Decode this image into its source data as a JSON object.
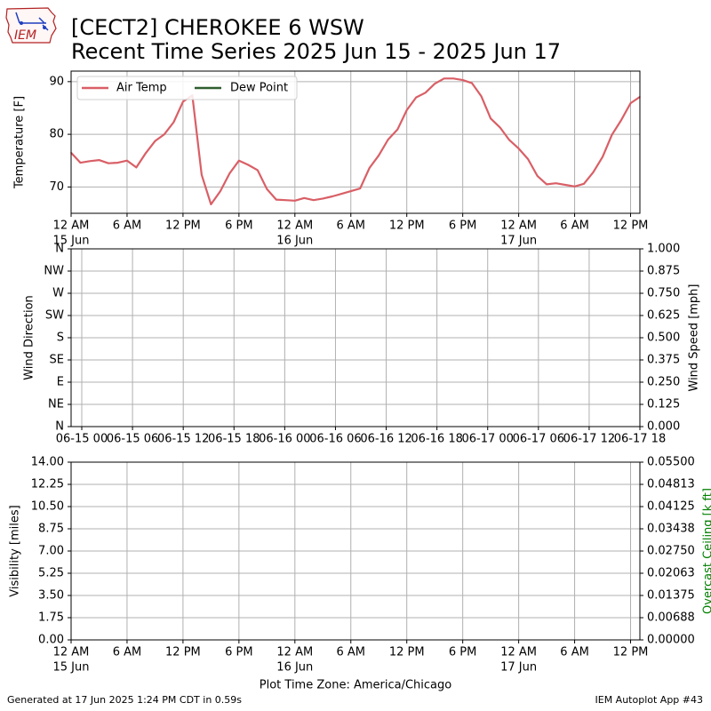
{
  "page": {
    "title_line1": "[CECT2] CHEROKEE 6 WSW",
    "title_line2": "Recent Time Series 2025 Jun 15 - 2025 Jun 17",
    "logo_text": "IEM",
    "footer_left": "Generated at 17 Jun 2025 1:24 PM CDT in 0.59s",
    "footer_right": "IEM Autoplot App #43"
  },
  "colors": {
    "air_temp": "#d95f66",
    "dew_point": "#2e5e2e",
    "ceiling_label": "#008000",
    "grid": "#b0b0b0"
  },
  "chart_data": [
    {
      "type": "line",
      "ylabel": "Temperature [F]",
      "ylim": [
        65,
        92
      ],
      "yticks": [
        70,
        80,
        90
      ],
      "grid": true,
      "legend_placement": "top-left",
      "xlim_hours": [
        0,
        61
      ],
      "xticks": [
        {
          "h": 0,
          "label": "12 AM",
          "sub": "15 Jun"
        },
        {
          "h": 6,
          "label": "6 AM",
          "sub": ""
        },
        {
          "h": 12,
          "label": "12 PM",
          "sub": ""
        },
        {
          "h": 18,
          "label": "6 PM",
          "sub": ""
        },
        {
          "h": 24,
          "label": "12 AM",
          "sub": "16 Jun"
        },
        {
          "h": 30,
          "label": "6 AM",
          "sub": ""
        },
        {
          "h": 36,
          "label": "12 PM",
          "sub": ""
        },
        {
          "h": 42,
          "label": "6 PM",
          "sub": ""
        },
        {
          "h": 48,
          "label": "12 AM",
          "sub": "17 Jun"
        },
        {
          "h": 54,
          "label": "6 AM",
          "sub": ""
        },
        {
          "h": 60,
          "label": "12 PM",
          "sub": ""
        }
      ],
      "series": [
        {
          "name": "Air Temp",
          "x": [
            0,
            1,
            2,
            3,
            4,
            5,
            6,
            7,
            8,
            9,
            10,
            11,
            12,
            13,
            14,
            15,
            16,
            17,
            18,
            19,
            20,
            21,
            22,
            23,
            24,
            25,
            26,
            27,
            28,
            29,
            30,
            31,
            32,
            33,
            34,
            35,
            36,
            37,
            38,
            39,
            40,
            41,
            42,
            43,
            44,
            45,
            46,
            47,
            48,
            49,
            50,
            51,
            52,
            53,
            54,
            55,
            56,
            57,
            58,
            59,
            60,
            61
          ],
          "values": [
            76.5,
            74.6,
            74.9,
            75.1,
            74.5,
            74.6,
            75.0,
            73.7,
            76.4,
            78.7,
            80.0,
            82.3,
            86.2,
            87.4,
            72.3,
            66.7,
            69.2,
            72.6,
            75.0,
            74.2,
            73.2,
            69.6,
            67.6,
            67.5,
            67.4,
            67.9,
            67.5,
            67.8,
            68.2,
            68.7,
            69.2,
            69.7,
            73.6,
            76.0,
            79.0,
            80.9,
            84.6,
            87.0,
            87.9,
            89.6,
            90.6,
            90.6,
            90.3,
            89.7,
            87.2,
            83.0,
            81.3,
            78.9,
            77.3,
            75.3,
            72.1,
            70.5,
            70.7,
            70.4,
            70.1,
            70.6,
            72.8,
            75.7,
            79.9,
            82.7,
            85.9,
            87.1
          ]
        },
        {
          "name": "Dew Point",
          "x": [],
          "values": []
        }
      ]
    },
    {
      "type": "line",
      "ylabel": "Wind Direction",
      "y2label": "Wind Speed [mph]",
      "yticklabels": [
        "N",
        "NE",
        "E",
        "SE",
        "S",
        "SW",
        "W",
        "NW",
        "N"
      ],
      "y2ticklabels": [
        "0.000",
        "0.125",
        "0.250",
        "0.375",
        "0.500",
        "0.625",
        "0.750",
        "0.875",
        "1.000"
      ],
      "y2lim": [
        0,
        1
      ],
      "grid": true,
      "xticks": [
        {
          "h": 0,
          "label": "06-15 00"
        },
        {
          "h": 6,
          "label": "06-15 06"
        },
        {
          "h": 12,
          "label": "06-15 12"
        },
        {
          "h": 18,
          "label": "06-15 18"
        },
        {
          "h": 24,
          "label": "06-16 00"
        },
        {
          "h": 30,
          "label": "06-16 06"
        },
        {
          "h": 36,
          "label": "06-16 12"
        },
        {
          "h": 42,
          "label": "06-16 18"
        },
        {
          "h": 48,
          "label": "06-17 00"
        },
        {
          "h": 54,
          "label": "06-17 06"
        },
        {
          "h": 60,
          "label": "06-17 12"
        },
        {
          "h": 66,
          "label": "06-17 18"
        }
      ],
      "series": []
    },
    {
      "type": "line",
      "ylabel": "Visibility [miles]",
      "y2label": "Overcast Ceiling [k ft]",
      "ylim": [
        0,
        14
      ],
      "yticklabels": [
        "0.00",
        "1.75",
        "3.50",
        "5.25",
        "7.00",
        "8.75",
        "10.50",
        "12.25",
        "14.00"
      ],
      "y2lim": [
        0,
        0.055
      ],
      "y2ticklabels": [
        "0.00000",
        "0.00688",
        "0.01375",
        "0.02063",
        "0.02750",
        "0.03438",
        "0.04125",
        "0.04813",
        "0.05500"
      ],
      "grid": true,
      "xlabel": "Plot Time Zone: America/Chicago",
      "series": []
    }
  ]
}
